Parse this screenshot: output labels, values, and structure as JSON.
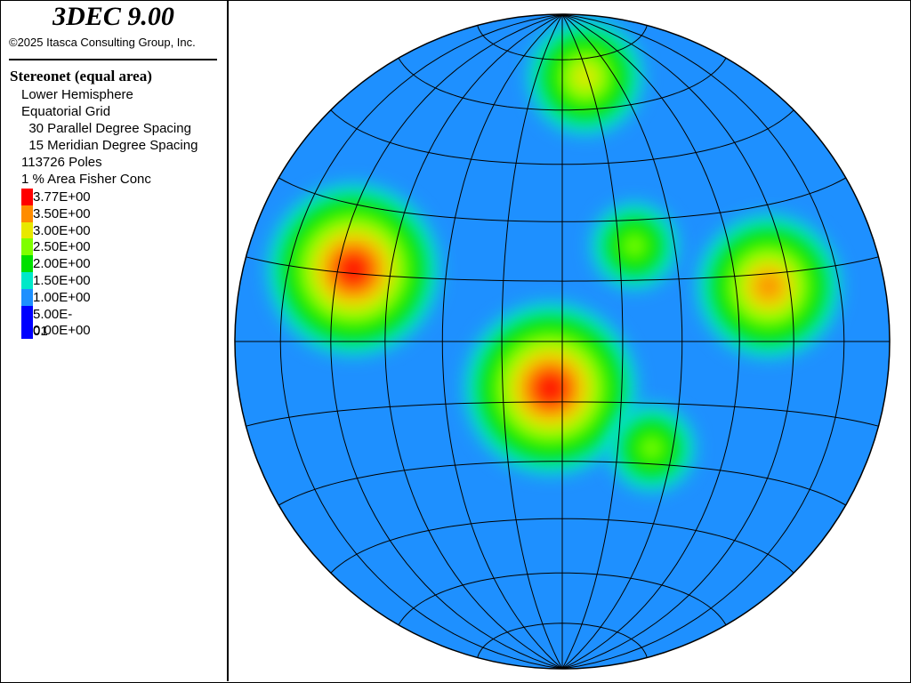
{
  "app_title": "3DEC 9.00",
  "copyright": "©2025 Itasca Consulting Group, Inc.",
  "plot_title": "Stereonet (equal area)",
  "info_lines": [
    "Lower Hemisphere",
    "Equatorial Grid",
    "  30 Parallel Degree Spacing",
    "  15 Meridian Degree Spacing",
    "113726 Poles",
    "1 % Area Fisher Conc"
  ],
  "legend": [
    {
      "label": "3.77E+00",
      "color": "#ff0000"
    },
    {
      "label": "3.50E+00",
      "color": "#ff8c00"
    },
    {
      "label": "3.00E+00",
      "color": "#e8e800"
    },
    {
      "label": "2.50E+00",
      "color": "#7fff00"
    },
    {
      "label": "2.00E+00",
      "color": "#00e000"
    },
    {
      "label": "1.50E+00",
      "color": "#00e8c8"
    },
    {
      "label": "1.00E+00",
      "color": "#1e90ff"
    },
    {
      "label": "5.00E-01",
      "color": "#0000ff"
    },
    {
      "label": "0.00E+00",
      "color": "#0000ff"
    }
  ],
  "chart_data": {
    "type": "heatmap",
    "projection": "equal area",
    "hemisphere": "lower",
    "grid": "equatorial",
    "parallel_spacing_deg": 30,
    "meridian_spacing_deg": 15,
    "poles": 113726,
    "levels": [
      0.0,
      0.5,
      1.0,
      1.5,
      2.0,
      2.5,
      3.0,
      3.5,
      3.77
    ],
    "peaks": [
      {
        "trend_deg": 194,
        "plunge_deg": 78,
        "value": 3.77
      },
      {
        "trend_deg": 289,
        "plunge_deg": 33,
        "value": 3.77
      },
      {
        "trend_deg": 75,
        "plunge_deg": 35,
        "value": 3.5
      },
      {
        "trend_deg": 5,
        "plunge_deg": 20,
        "value": 3.0
      },
      {
        "trend_deg": 140,
        "plunge_deg": 55,
        "value": 2.5
      },
      {
        "trend_deg": 37,
        "plunge_deg": 60,
        "value": 2.5
      }
    ]
  }
}
